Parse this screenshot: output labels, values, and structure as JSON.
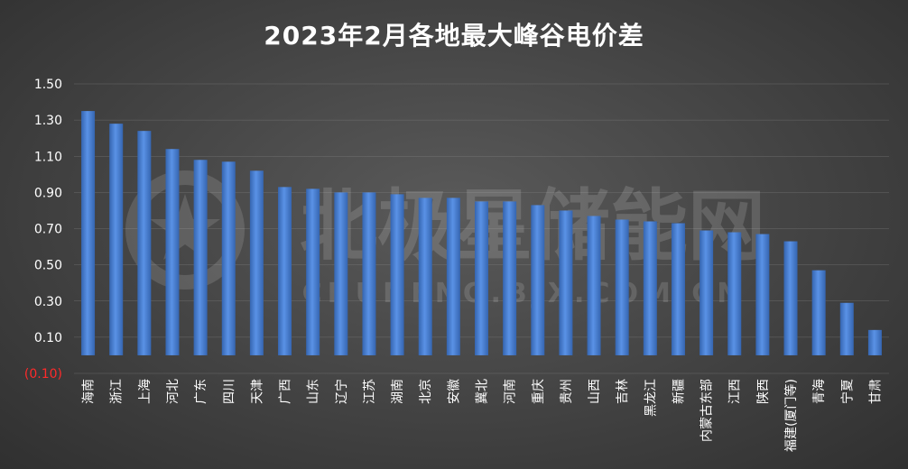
{
  "chart_data": {
    "type": "bar",
    "title": "2023年2月各地最大峰谷电价差",
    "categories": [
      "海南",
      "浙江",
      "上海",
      "河北",
      "广东",
      "四川",
      "天津",
      "广西",
      "山东",
      "辽宁",
      "江苏",
      "湖南",
      "北京",
      "安徽",
      "冀北",
      "河南",
      "重庆",
      "贵州",
      "山西",
      "吉林",
      "黑龙江",
      "新疆",
      "内蒙古东部",
      "江西",
      "陕西",
      "福建(厦门等)",
      "青海",
      "宁夏",
      "甘肃"
    ],
    "values": [
      1.35,
      1.28,
      1.24,
      1.14,
      1.08,
      1.07,
      1.02,
      0.93,
      0.92,
      0.9,
      0.9,
      0.89,
      0.87,
      0.87,
      0.85,
      0.85,
      0.83,
      0.8,
      0.77,
      0.75,
      0.74,
      0.73,
      0.69,
      0.68,
      0.67,
      0.63,
      0.47,
      0.29,
      0.14
    ],
    "yticks": [
      "1.50",
      "1.30",
      "1.10",
      "0.90",
      "0.70",
      "0.50",
      "0.30",
      "0.10",
      "(0.10)"
    ],
    "ytick_values": [
      1.5,
      1.3,
      1.1,
      0.9,
      0.7,
      0.5,
      0.3,
      0.1,
      -0.1
    ],
    "ylim": [
      -0.1,
      1.5
    ],
    "grid": true,
    "bar_color": "#4a7fd0",
    "negative_tick_color": "#ff2a2a",
    "xlabel": "",
    "ylabel": ""
  },
  "watermark": {
    "logo_text": "北极星储能网",
    "url_text": "CHUNENG.BJX.COM.CN"
  }
}
